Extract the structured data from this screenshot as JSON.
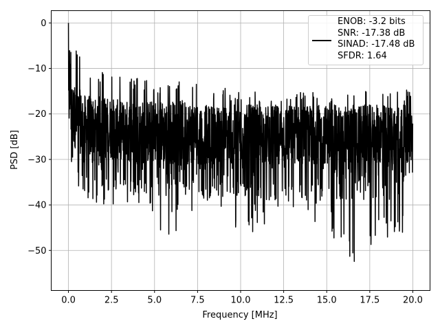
{
  "chart_data": {
    "type": "line",
    "title": "",
    "xlabel": "Frequency [MHz]",
    "ylabel": "PSD [dB]",
    "xlim": [
      -1.0,
      21.0
    ],
    "ylim": [
      -58.8,
      2.7
    ],
    "grid": true,
    "xticks": [
      0.0,
      2.5,
      5.0,
      7.5,
      10.0,
      12.5,
      15.0,
      17.5,
      20.0
    ],
    "xtick_labels": [
      "0.0",
      "2.5",
      "5.0",
      "7.5",
      "10.0",
      "12.5",
      "15.0",
      "17.5",
      "20.0"
    ],
    "yticks": [
      0,
      -10,
      -20,
      -30,
      -40,
      -50
    ],
    "ytick_labels": [
      "0",
      "−10",
      "−20",
      "−30",
      "−40",
      "−50"
    ],
    "series": [
      {
        "name": "PSD",
        "color": "#000000",
        "description_values": "noise floor envelope per 1 MHz bin",
        "x": [
          0,
          1,
          2,
          3,
          4,
          5,
          6,
          7,
          8,
          9,
          10,
          11,
          12,
          13,
          14,
          15,
          16,
          17,
          18,
          19,
          20
        ],
        "peak_upper": [
          0,
          -10,
          -10.5,
          -11,
          -12,
          -13,
          -12,
          -13,
          -14,
          -14,
          -15,
          -15,
          -15,
          -14,
          -15,
          -15,
          -14,
          -14,
          -15,
          -14,
          -15
        ],
        "body_upper": [
          -12,
          -16,
          -16,
          -17,
          -17,
          -17,
          -17,
          -17,
          -18,
          -18,
          -18,
          -18,
          -18,
          -18,
          -18,
          -18,
          -18,
          -18,
          -18,
          -18,
          -18
        ],
        "body_lower": [
          -26,
          -30,
          -30,
          -30,
          -31,
          -31,
          -31,
          -31,
          -31,
          -31,
          -31,
          -31,
          -31,
          -31,
          -31,
          -31,
          -31,
          -31,
          -31,
          -31,
          -31
        ],
        "dip_lower": [
          -44,
          -41,
          -40,
          -41,
          -39,
          -46,
          -47,
          -43,
          -43,
          -41,
          -48,
          -45,
          -43,
          -41,
          -44,
          -44,
          -52,
          -56,
          -45,
          -50,
          -42
        ]
      }
    ],
    "legend": {
      "placement": "top-right",
      "entries": [
        "ENOB: -3.2 bits",
        "SNR: -17.38 dB",
        "SINAD: -17.48 dB",
        "SFDR: 1.64"
      ]
    }
  }
}
